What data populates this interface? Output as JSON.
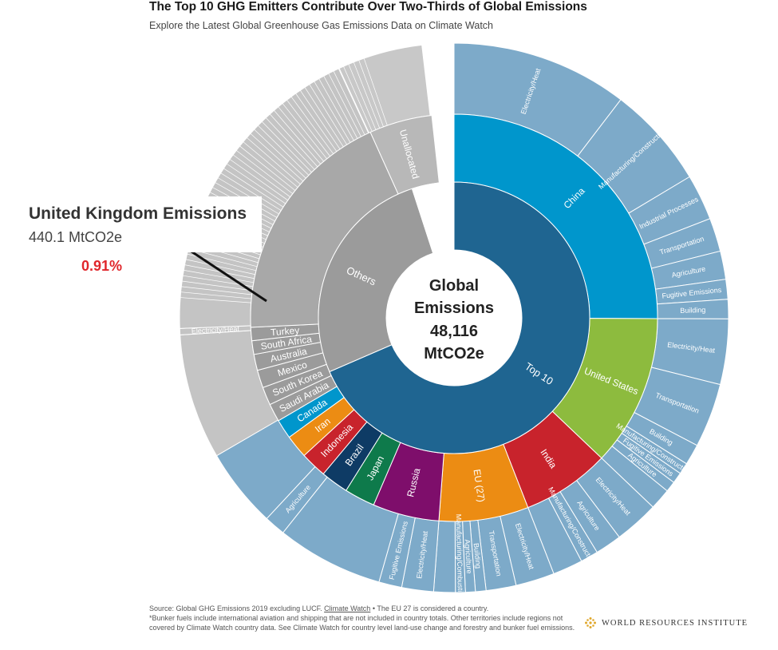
{
  "header": {
    "title": "The Top 10 GHG Emitters Contribute Over Two-Thirds of Global Emissions",
    "subtitle": "Explore the Latest Global Greenhouse Gas Emissions Data on Climate Watch"
  },
  "callout": {
    "title": "United Kingdom Emissions",
    "value": "440.1 MtCO2e",
    "percent": "0.91%"
  },
  "center": {
    "line1": "Global",
    "line2": "Emissions",
    "line3": "48,116",
    "line4": "MtCO2e"
  },
  "footer": {
    "source_prefix": "Source: Global GHG Emissions 2019 excluding LUCF.",
    "source_link": "Climate Watch",
    "source_suffix": "• The EU 27 is considered a country.",
    "note": "*Bunker fuels include international aviation and shipping that are not included in country totals. Other territories include regions not covered by Climate Watch country data. See Climate Watch for country level land-use change and forestry and bunker fuel emissions."
  },
  "brand": {
    "name": "WORLD RESOURCES INSTITUTE",
    "color": "#e0a72b"
  },
  "chart_data": {
    "type": "sunburst",
    "total": 48116,
    "unit": "MtCO2e",
    "start_angle_deg": 0,
    "inner": [
      {
        "label": "Top 10",
        "value": 32960,
        "color": "#1f6591"
      },
      {
        "label": "Others",
        "value": 12750,
        "color": "#9b9b9b"
      },
      {
        "label": "",
        "value": 2406,
        "color": "#ffffff"
      }
    ],
    "middle": [
      {
        "label": "China",
        "value": 12060,
        "color": "#0096cc",
        "parent": "Top 10"
      },
      {
        "label": "United States",
        "value": 5790,
        "color": "#8dbb3e",
        "parent": "Top 10"
      },
      {
        "label": "India",
        "value": 3360,
        "color": "#c8232c",
        "parent": "Top 10"
      },
      {
        "label": "EU (27)",
        "value": 3420,
        "color": "#ec8c13",
        "parent": "Top 10"
      },
      {
        "label": "Russia",
        "value": 2540,
        "color": "#7e0e6b",
        "parent": "Top 10"
      },
      {
        "label": "Japan",
        "value": 1170,
        "color": "#0e7a4b",
        "parent": "Top 10"
      },
      {
        "label": "Brazil",
        "value": 1060,
        "color": "#0e3b65",
        "parent": "Top 10"
      },
      {
        "label": "Indonesia",
        "value": 1000,
        "color": "#c8232c",
        "parent": "Top 10"
      },
      {
        "label": "Iran",
        "value": 890,
        "color": "#ec8c13",
        "parent": "Top 10"
      },
      {
        "label": "Canada",
        "value": 740,
        "color": "#0096cc",
        "parent": "Top 10"
      },
      {
        "label": "Saudi Arabia",
        "value": 690,
        "color": "#9b9b9b",
        "parent": "Others"
      },
      {
        "label": "South Korea",
        "value": 690,
        "color": "#9b9b9b",
        "parent": "Others"
      },
      {
        "label": "Mexico",
        "value": 680,
        "color": "#9b9b9b",
        "parent": "Others"
      },
      {
        "label": "Australia",
        "value": 610,
        "color": "#9b9b9b",
        "parent": "Others"
      },
      {
        "label": "South Africa",
        "value": 520,
        "color": "#9b9b9b",
        "parent": "Others"
      },
      {
        "label": "Turkey",
        "value": 510,
        "color": "#9b9b9b",
        "parent": "Others"
      },
      {
        "label": "",
        "value": 9140,
        "color": "#a8a8a8",
        "parent": "Others"
      },
      {
        "label": "Unallocated",
        "value": 2406,
        "color": "#b8b8b8",
        "parent": ""
      }
    ],
    "outer": [
      {
        "label": "Electricity/Heat",
        "value": 5000,
        "color": "#7daac9"
      },
      {
        "label": "Manufacturing/Construction",
        "value": 2900,
        "color": "#7daac9"
      },
      {
        "label": "Industrial Processes",
        "value": 1300,
        "color": "#7daac9"
      },
      {
        "label": "Transportation",
        "value": 950,
        "color": "#7daac9"
      },
      {
        "label": "Agriculture",
        "value": 800,
        "color": "#7daac9"
      },
      {
        "label": "Fugitive Emissions",
        "value": 560,
        "color": "#7daac9"
      },
      {
        "label": "Building",
        "value": 550,
        "color": "#7daac9"
      },
      {
        "label": "Electricity/Heat",
        "value": 1850,
        "color": "#7daac9"
      },
      {
        "label": "Transportation",
        "value": 1820,
        "color": "#7daac9"
      },
      {
        "label": "Building",
        "value": 590,
        "color": "#7daac9"
      },
      {
        "label": "Manufacturing/Construction",
        "value": 320,
        "color": "#7daac9"
      },
      {
        "label": "Fugitive Emissions",
        "value": 310,
        "color": "#7daac9"
      },
      {
        "label": "Agriculture",
        "value": 300,
        "color": "#7daac9"
      },
      {
        "label": "",
        "value": 600,
        "color": "#7daac9"
      },
      {
        "label": "Electricity/Heat",
        "value": 1260,
        "color": "#7daac9"
      },
      {
        "label": "Agriculture",
        "value": 750,
        "color": "#7daac9"
      },
      {
        "label": "Manufacturing/Construction",
        "value": 500,
        "color": "#7daac9"
      },
      {
        "label": "",
        "value": 850,
        "color": "#7daac9"
      },
      {
        "label": "Electricity/Heat",
        "value": 1100,
        "color": "#7daac9"
      },
      {
        "label": "Transportation",
        "value": 850,
        "color": "#7daac9"
      },
      {
        "label": "Building",
        "value": 300,
        "color": "#7daac9"
      },
      {
        "label": "Agriculture",
        "value": 280,
        "color": "#7daac9"
      },
      {
        "label": "Manufacturing/Combustion",
        "value": 280,
        "color": "#7daac9"
      },
      {
        "label": "",
        "value": 610,
        "color": "#7daac9"
      },
      {
        "label": "Electricity/Heat",
        "value": 900,
        "color": "#7daac9"
      },
      {
        "label": "Fugitive Emissions",
        "value": 650,
        "color": "#7daac9"
      },
      {
        "label": "",
        "value": 3030,
        "color": "#7daac9"
      },
      {
        "label": "Agriculture",
        "value": 600,
        "color": "#7daac9"
      },
      {
        "label": "",
        "value": 2250,
        "color": "#7daac9"
      },
      {
        "label": "",
        "value": 3550,
        "color": "#c4c4c4"
      },
      {
        "label": "Electricity/Heat",
        "value": 180,
        "color": "#c4c4c4"
      },
      {
        "label": "",
        "value": 9020,
        "color": "#c4c4c4"
      },
      {
        "label": "",
        "value": 2406,
        "color": "#c8c8c8"
      }
    ]
  }
}
